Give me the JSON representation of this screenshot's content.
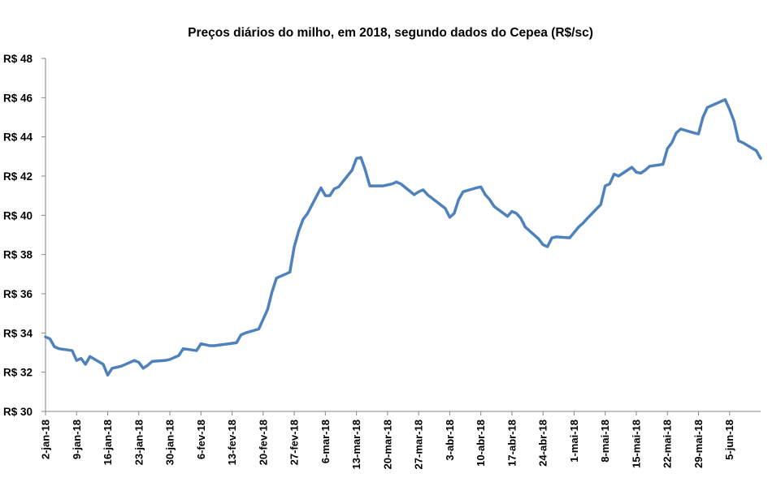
{
  "chart_data": {
    "type": "line",
    "title": "Preços diários do milho, em 2018, segundo dados do Cepea (R$/sc)",
    "xlabel": "",
    "ylabel": "",
    "ylim": [
      30,
      48
    ],
    "ytick_step": 2,
    "ytick_labels": [
      "R$ 30",
      "R$ 32",
      "R$ 34",
      "R$ 36",
      "R$ 38",
      "R$ 40",
      "R$ 42",
      "R$ 44",
      "R$ 46",
      "R$ 48"
    ],
    "grid": false,
    "legend": "none",
    "line_color": "#4f81bd",
    "x_range": [
      "2018-01-02",
      "2018-06-12"
    ],
    "xtick_labels": [
      {
        "date": "2018-01-02",
        "label": "2-jan-18"
      },
      {
        "date": "2018-01-09",
        "label": "9-jan-18"
      },
      {
        "date": "2018-01-16",
        "label": "16-jan-18"
      },
      {
        "date": "2018-01-23",
        "label": "23-jan-18"
      },
      {
        "date": "2018-01-30",
        "label": "30-jan-18"
      },
      {
        "date": "2018-02-06",
        "label": "6-fev-18"
      },
      {
        "date": "2018-02-13",
        "label": "13-fev-18"
      },
      {
        "date": "2018-02-20",
        "label": "20-fev-18"
      },
      {
        "date": "2018-02-27",
        "label": "27-fev-18"
      },
      {
        "date": "2018-03-06",
        "label": "6-mar-18"
      },
      {
        "date": "2018-03-13",
        "label": "13-mar-18"
      },
      {
        "date": "2018-03-20",
        "label": "20-mar-18"
      },
      {
        "date": "2018-03-27",
        "label": "27-mar-18"
      },
      {
        "date": "2018-04-03",
        "label": "3-abr-18"
      },
      {
        "date": "2018-04-10",
        "label": "10-abr-18"
      },
      {
        "date": "2018-04-17",
        "label": "17-abr-18"
      },
      {
        "date": "2018-04-24",
        "label": "24-abr-18"
      },
      {
        "date": "2018-05-01",
        "label": "1-mai-18"
      },
      {
        "date": "2018-05-08",
        "label": "8-mai-18"
      },
      {
        "date": "2018-05-15",
        "label": "15-mai-18"
      },
      {
        "date": "2018-05-22",
        "label": "22-mai-18"
      },
      {
        "date": "2018-05-29",
        "label": "29-mai-18"
      },
      {
        "date": "2018-06-05",
        "label": "5-jun-18"
      }
    ],
    "series": [
      {
        "values": [
          [
            "2018-01-02",
            33.8
          ],
          [
            "2018-01-03",
            33.7
          ],
          [
            "2018-01-04",
            33.3
          ],
          [
            "2018-01-05",
            33.2
          ],
          [
            "2018-01-08",
            33.1
          ],
          [
            "2018-01-09",
            32.6
          ],
          [
            "2018-01-10",
            32.7
          ],
          [
            "2018-01-11",
            32.4
          ],
          [
            "2018-01-12",
            32.8
          ],
          [
            "2018-01-15",
            32.4
          ],
          [
            "2018-01-16",
            31.85
          ],
          [
            "2018-01-17",
            32.2
          ],
          [
            "2018-01-18",
            32.25
          ],
          [
            "2018-01-19",
            32.3
          ],
          [
            "2018-01-22",
            32.6
          ],
          [
            "2018-01-23",
            32.5
          ],
          [
            "2018-01-24",
            32.2
          ],
          [
            "2018-01-25",
            32.35
          ],
          [
            "2018-01-26",
            32.55
          ],
          [
            "2018-01-29",
            32.6
          ],
          [
            "2018-01-30",
            32.65
          ],
          [
            "2018-01-31",
            32.75
          ],
          [
            "2018-02-01",
            32.85
          ],
          [
            "2018-02-02",
            33.2
          ],
          [
            "2018-02-05",
            33.1
          ],
          [
            "2018-02-06",
            33.45
          ],
          [
            "2018-02-07",
            33.4
          ],
          [
            "2018-02-08",
            33.35
          ],
          [
            "2018-02-09",
            33.35
          ],
          [
            "2018-02-14",
            33.5
          ],
          [
            "2018-02-15",
            33.9
          ],
          [
            "2018-02-16",
            34.0
          ],
          [
            "2018-02-19",
            34.2
          ],
          [
            "2018-02-20",
            34.7
          ],
          [
            "2018-02-21",
            35.2
          ],
          [
            "2018-02-22",
            36.1
          ],
          [
            "2018-02-23",
            36.8
          ],
          [
            "2018-02-26",
            37.1
          ],
          [
            "2018-02-27",
            38.4
          ],
          [
            "2018-02-28",
            39.2
          ],
          [
            "2018-03-01",
            39.8
          ],
          [
            "2018-03-02",
            40.1
          ],
          [
            "2018-03-05",
            41.4
          ],
          [
            "2018-03-06",
            41.0
          ],
          [
            "2018-03-07",
            41.0
          ],
          [
            "2018-03-08",
            41.35
          ],
          [
            "2018-03-09",
            41.45
          ],
          [
            "2018-03-12",
            42.3
          ],
          [
            "2018-03-13",
            42.9
          ],
          [
            "2018-03-14",
            42.95
          ],
          [
            "2018-03-15",
            42.3
          ],
          [
            "2018-03-16",
            41.5
          ],
          [
            "2018-03-19",
            41.5
          ],
          [
            "2018-03-20",
            41.55
          ],
          [
            "2018-03-21",
            41.6
          ],
          [
            "2018-03-22",
            41.7
          ],
          [
            "2018-03-23",
            41.6
          ],
          [
            "2018-03-26",
            41.05
          ],
          [
            "2018-03-27",
            41.2
          ],
          [
            "2018-03-28",
            41.3
          ],
          [
            "2018-03-29",
            41.05
          ],
          [
            "2018-04-02",
            40.35
          ],
          [
            "2018-04-03",
            39.9
          ],
          [
            "2018-04-04",
            40.1
          ],
          [
            "2018-04-05",
            40.8
          ],
          [
            "2018-04-06",
            41.2
          ],
          [
            "2018-04-09",
            41.4
          ],
          [
            "2018-04-10",
            41.45
          ],
          [
            "2018-04-11",
            41.05
          ],
          [
            "2018-04-12",
            40.8
          ],
          [
            "2018-04-13",
            40.45
          ],
          [
            "2018-04-16",
            39.95
          ],
          [
            "2018-04-17",
            40.2
          ],
          [
            "2018-04-18",
            40.1
          ],
          [
            "2018-04-19",
            39.85
          ],
          [
            "2018-04-20",
            39.4
          ],
          [
            "2018-04-23",
            38.8
          ],
          [
            "2018-04-24",
            38.5
          ],
          [
            "2018-04-25",
            38.4
          ],
          [
            "2018-04-26",
            38.85
          ],
          [
            "2018-04-27",
            38.9
          ],
          [
            "2018-04-30",
            38.85
          ],
          [
            "2018-05-02",
            39.4
          ],
          [
            "2018-05-03",
            39.6
          ],
          [
            "2018-05-04",
            39.85
          ],
          [
            "2018-05-07",
            40.55
          ],
          [
            "2018-05-08",
            41.5
          ],
          [
            "2018-05-09",
            41.6
          ],
          [
            "2018-05-10",
            42.1
          ],
          [
            "2018-05-11",
            42.0
          ],
          [
            "2018-05-14",
            42.45
          ],
          [
            "2018-05-15",
            42.2
          ],
          [
            "2018-05-16",
            42.15
          ],
          [
            "2018-05-17",
            42.3
          ],
          [
            "2018-05-18",
            42.5
          ],
          [
            "2018-05-21",
            42.6
          ],
          [
            "2018-05-22",
            43.4
          ],
          [
            "2018-05-23",
            43.7
          ],
          [
            "2018-05-24",
            44.2
          ],
          [
            "2018-05-25",
            44.4
          ],
          [
            "2018-05-28",
            44.2
          ],
          [
            "2018-05-29",
            44.15
          ],
          [
            "2018-05-30",
            45.0
          ],
          [
            "2018-05-31",
            45.5
          ],
          [
            "2018-06-01",
            45.6
          ],
          [
            "2018-06-04",
            45.9
          ],
          [
            "2018-06-05",
            45.4
          ],
          [
            "2018-06-06",
            44.8
          ],
          [
            "2018-06-07",
            43.8
          ],
          [
            "2018-06-08",
            43.7
          ],
          [
            "2018-06-11",
            43.3
          ],
          [
            "2018-06-12",
            42.9
          ]
        ]
      }
    ]
  }
}
